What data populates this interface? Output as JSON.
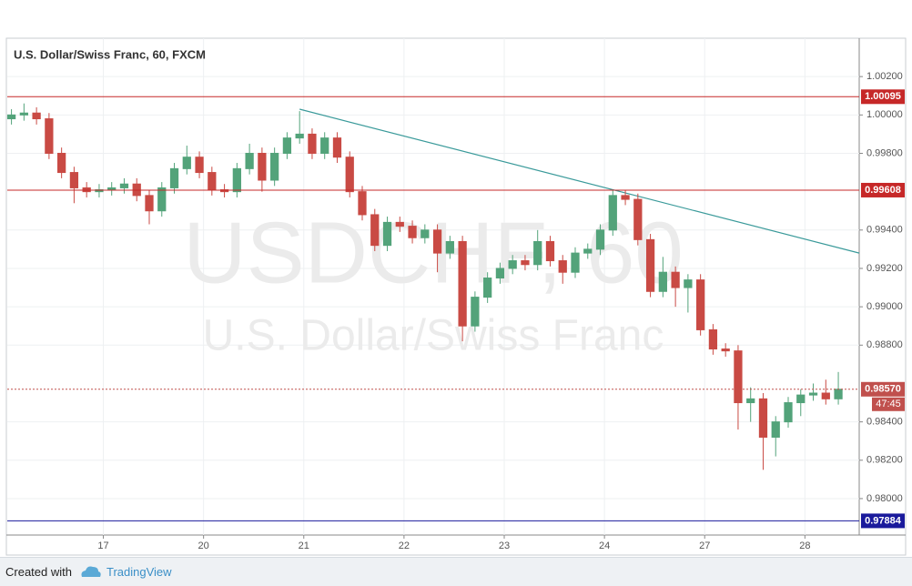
{
  "chart_data": {
    "type": "candlestick",
    "title": "U.S. Dollar/Swiss Franc, 60, FXCM",
    "watermark": "USDCHF, 60",
    "watermark_subtitle": "U.S. Dollar/Swiss Franc",
    "up_color": "#53a37a",
    "down_color": "#c94a44",
    "x": [
      2,
      5,
      8,
      11,
      14,
      17,
      20,
      23,
      26,
      29,
      32,
      35,
      38,
      41,
      44,
      47,
      50,
      53,
      56,
      59,
      62,
      65,
      68,
      71,
      74,
      77,
      80,
      83,
      86,
      89,
      92,
      95,
      98,
      101,
      104,
      107,
      110,
      113,
      116,
      119,
      122,
      125,
      128,
      131,
      134,
      137,
      140,
      143,
      146,
      149,
      152,
      155,
      158,
      161,
      164,
      167,
      170,
      173,
      176,
      179,
      182,
      185,
      188,
      191,
      194,
      197,
      200
    ],
    "open": [
      0.9998,
      1.0,
      1.0001,
      0.9998,
      0.998,
      0.997,
      0.9962,
      0.996,
      0.9961,
      0.9962,
      0.9964,
      0.9958,
      0.995,
      0.9962,
      0.9972,
      0.9978,
      0.997,
      0.9961,
      0.996,
      0.9972,
      0.998,
      0.9966,
      0.998,
      0.9988,
      0.999,
      0.998,
      0.9988,
      0.9978,
      0.996,
      0.9948,
      0.9932,
      0.9944,
      0.9942,
      0.9936,
      0.994,
      0.9928,
      0.9934,
      0.989,
      0.9905,
      0.9915,
      0.992,
      0.9924,
      0.9922,
      0.9934,
      0.9924,
      0.9918,
      0.9928,
      0.993,
      0.994,
      0.9958,
      0.9956,
      0.9935,
      0.9908,
      0.9918,
      0.991,
      0.9914,
      0.9888,
      0.9878,
      0.9877,
      0.985,
      0.9852,
      0.9832,
      0.984,
      0.985,
      0.9854,
      0.9855,
      0.9852
    ],
    "high": [
      1.0003,
      1.0006,
      1.0004,
      1.0001,
      0.9983,
      0.9973,
      0.9965,
      0.9964,
      0.9965,
      0.9967,
      0.9967,
      0.9961,
      0.9965,
      0.9975,
      0.9984,
      0.9981,
      0.9973,
      0.9964,
      0.9975,
      0.9985,
      0.9983,
      0.9983,
      0.9991,
      1.0002,
      0.9993,
      0.9991,
      0.9991,
      0.9981,
      0.9963,
      0.9951,
      0.9947,
      0.9947,
      0.9945,
      0.9943,
      0.9943,
      0.9937,
      0.9937,
      0.9908,
      0.9918,
      0.9923,
      0.9927,
      0.9927,
      0.994,
      0.9937,
      0.9927,
      0.9931,
      0.9933,
      0.9943,
      0.9961,
      0.9961,
      0.9959,
      0.9938,
      0.9926,
      0.9921,
      0.9917,
      0.9917,
      0.9891,
      0.9881,
      0.988,
      0.9858,
      0.9855,
      0.9843,
      0.9853,
      0.9857,
      0.986,
      0.9862,
      0.9866
    ],
    "low": [
      0.9995,
      0.9997,
      0.9995,
      0.9977,
      0.9967,
      0.9954,
      0.9957,
      0.9957,
      0.9958,
      0.9959,
      0.9955,
      0.9943,
      0.9947,
      0.9959,
      0.9969,
      0.9967,
      0.9958,
      0.9957,
      0.9957,
      0.9969,
      0.996,
      0.9963,
      0.9977,
      0.9985,
      0.9977,
      0.9977,
      0.9975,
      0.9957,
      0.9945,
      0.9929,
      0.9929,
      0.9939,
      0.9933,
      0.9933,
      0.9918,
      0.9925,
      0.9882,
      0.9887,
      0.9902,
      0.9912,
      0.9917,
      0.9919,
      0.9919,
      0.9921,
      0.9912,
      0.9915,
      0.9925,
      0.9927,
      0.9937,
      0.9953,
      0.9932,
      0.9905,
      0.9905,
      0.99,
      0.9897,
      0.9885,
      0.9875,
      0.9874,
      0.9836,
      0.984,
      0.9815,
      0.9822,
      0.9837,
      0.9843,
      0.9851,
      0.9849,
      0.9849
    ],
    "close": [
      1.0,
      1.0001,
      0.9998,
      0.998,
      0.997,
      0.9962,
      0.996,
      0.9961,
      0.9962,
      0.9964,
      0.9958,
      0.995,
      0.9962,
      0.9972,
      0.9978,
      0.997,
      0.9961,
      0.996,
      0.9972,
      0.998,
      0.9966,
      0.998,
      0.9988,
      0.999,
      0.998,
      0.9988,
      0.9978,
      0.996,
      0.9948,
      0.9932,
      0.9944,
      0.9942,
      0.9936,
      0.994,
      0.9928,
      0.9934,
      0.989,
      0.9905,
      0.9915,
      0.992,
      0.9924,
      0.9922,
      0.9934,
      0.9924,
      0.9918,
      0.9928,
      0.993,
      0.994,
      0.9958,
      0.9956,
      0.9935,
      0.9908,
      0.9918,
      0.991,
      0.9914,
      0.9888,
      0.9878,
      0.9877,
      0.985,
      0.9852,
      0.9832,
      0.984,
      0.985,
      0.9854,
      0.9855,
      0.9852,
      0.9857
    ],
    "xlim": [
      1,
      205
    ],
    "ylim": [
      0.9781,
      1.004
    ],
    "xticks": [
      {
        "value": 24,
        "label": "17"
      },
      {
        "value": 48,
        "label": "20"
      },
      {
        "value": 72,
        "label": "21"
      },
      {
        "value": 96,
        "label": "22"
      },
      {
        "value": 120,
        "label": "23"
      },
      {
        "value": 144,
        "label": "24"
      },
      {
        "value": 168,
        "label": "27"
      },
      {
        "value": 192,
        "label": "28"
      }
    ],
    "yticks": [
      {
        "value": 1.002,
        "label": "1.00200"
      },
      {
        "value": 1.0,
        "label": "1.00000"
      },
      {
        "value": 0.998,
        "label": "0.99800"
      },
      {
        "value": 0.994,
        "label": "0.99400"
      },
      {
        "value": 0.992,
        "label": "0.99200"
      },
      {
        "value": 0.99,
        "label": "0.99000"
      },
      {
        "value": 0.988,
        "label": "0.98800"
      },
      {
        "value": 0.984,
        "label": "0.98400"
      },
      {
        "value": 0.982,
        "label": "0.98200"
      },
      {
        "value": 0.98,
        "label": "0.98000"
      }
    ],
    "grid": true,
    "levels": [
      {
        "value": 1.00095,
        "label": "1.00095",
        "color": "#c62828",
        "style": "solid"
      },
      {
        "value": 0.99608,
        "label": "0.99608",
        "color": "#c62828",
        "style": "solid"
      },
      {
        "value": 0.97884,
        "label": "0.97884",
        "color": "#1a1a9c",
        "style": "solid"
      },
      {
        "value": 0.9857,
        "label": "0.98570",
        "color": "#c0504d",
        "style": "dotted"
      }
    ],
    "countdown": "47:45",
    "trendline": {
      "x": [
        71,
        205
      ],
      "y": [
        1.0003,
        0.9928
      ],
      "color": "#3a9a9a"
    },
    "footer_prefix": "Created with",
    "footer_brand": "TradingView"
  }
}
